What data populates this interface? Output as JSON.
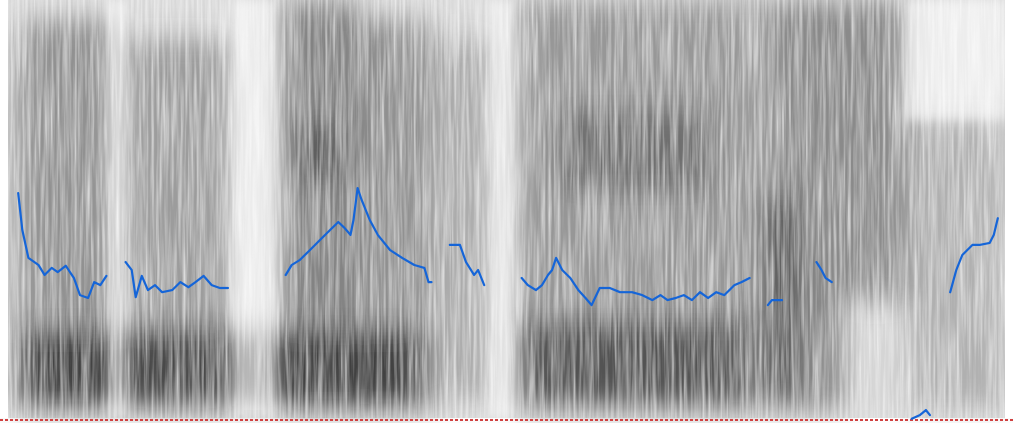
{
  "chart_data": {
    "type": "line",
    "xlim": [
      0,
      100
    ],
    "ylim": [
      0,
      100
    ],
    "x": [
      1.8,
      2.2,
      2.8,
      3.8,
      4.4,
      5.1,
      5.7,
      6.5,
      7.3,
      7.9,
      8.7,
      9.3,
      9.9,
      10.5,
      11.5,
      12.4,
      13.0,
      13.4,
      14.0,
      14.6,
      15.3,
      16.0,
      17.0,
      17.8,
      18.6,
      19.3,
      20.1,
      20.9,
      21.7,
      22.5,
      25.0,
      28.2,
      28.8,
      29.6,
      30.6,
      31.6,
      32.6,
      33.4,
      34.0,
      34.6,
      34.9,
      35.3,
      35.7,
      36.5,
      37.3,
      38.5,
      39.7,
      40.9,
      41.9,
      42.3,
      42.6,
      43.5,
      44.4,
      45.4,
      46.0,
      46.8,
      47.2,
      47.8,
      49.5,
      51.5,
      52.1,
      52.9,
      53.5,
      54.1,
      54.5,
      54.9,
      55.5,
      56.3,
      57.1,
      57.8,
      58.4,
      59.2,
      60.2,
      61.2,
      62.4,
      63.4,
      64.4,
      65.2,
      65.9,
      66.7,
      67.5,
      68.3,
      69.1,
      69.9,
      70.7,
      71.5,
      72.5,
      73.2,
      74.0,
      75.0,
      75.8,
      76.2,
      76.8,
      77.2,
      79.0,
      80.6,
      81.1,
      81.5,
      82.1,
      86.0,
      90.0,
      90.8,
      91.4,
      91.8,
      93.0,
      93.8,
      94.4,
      95.0,
      96.0,
      96.7,
      97.7,
      98.1,
      98.5
    ],
    "series": [
      {
        "color": "#1565d8",
        "values": [
          53.8,
          45.0,
          38.3,
          36.6,
          34.2,
          35.9,
          34.9,
          36.4,
          33.5,
          29.4,
          28.7,
          32.5,
          31.8,
          34.0,
          null,
          37.3,
          35.4,
          28.9,
          34.0,
          30.6,
          31.8,
          30.1,
          30.6,
          32.5,
          31.3,
          32.5,
          34.0,
          31.8,
          31.1,
          31.1,
          null,
          34.2,
          36.6,
          37.8,
          40.2,
          42.6,
          45.0,
          46.9,
          45.5,
          43.8,
          47.4,
          55.0,
          52.2,
          47.4,
          43.8,
          40.2,
          38.3,
          36.6,
          35.9,
          32.5,
          32.5,
          null,
          41.4,
          41.4,
          37.3,
          34.2,
          35.4,
          31.8,
          null,
          33.5,
          31.8,
          30.6,
          31.8,
          34.2,
          35.4,
          38.3,
          35.4,
          33.5,
          30.6,
          28.7,
          27.0,
          31.1,
          31.1,
          30.1,
          30.1,
          29.4,
          28.2,
          29.4,
          28.2,
          28.7,
          29.4,
          28.2,
          30.1,
          28.7,
          30.1,
          29.4,
          31.8,
          32.5,
          33.5,
          null,
          27.0,
          28.2,
          28.2,
          28.2,
          null,
          37.3,
          35.4,
          33.5,
          32.5,
          null,
          -0.2,
          0.7,
          1.9,
          0.7,
          null,
          30.1,
          35.4,
          39.0,
          41.4,
          41.4,
          41.9,
          43.8,
          47.8
        ]
      }
    ]
  }
}
